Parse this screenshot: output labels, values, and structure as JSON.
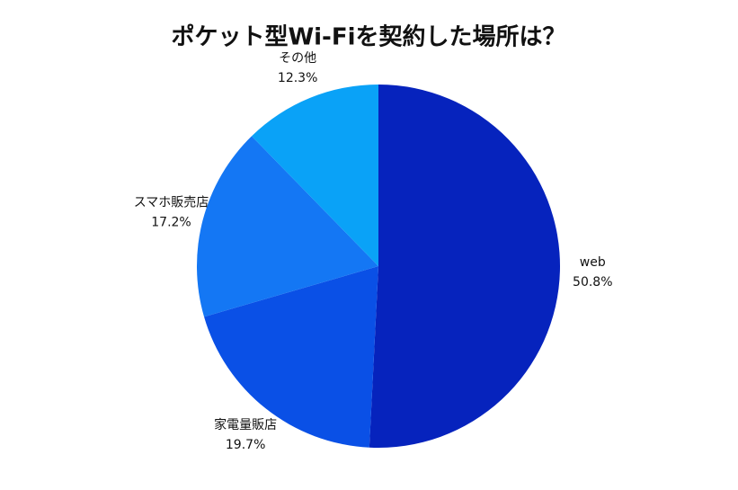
{
  "chart_data": {
    "type": "pie",
    "title": "ポケット型Wi-Fiを契約した場所は？",
    "categories": [
      "web",
      "家電量販店",
      "スマホ販売店",
      "その他"
    ],
    "values": [
      50.8,
      19.7,
      17.2,
      12.3
    ],
    "value_labels": [
      "50.8%",
      "19.7%",
      "17.2%",
      "12.3%"
    ],
    "colors": [
      "#0623bd",
      "#0a50e6",
      "#1477f4",
      "#0aa2f7"
    ]
  }
}
